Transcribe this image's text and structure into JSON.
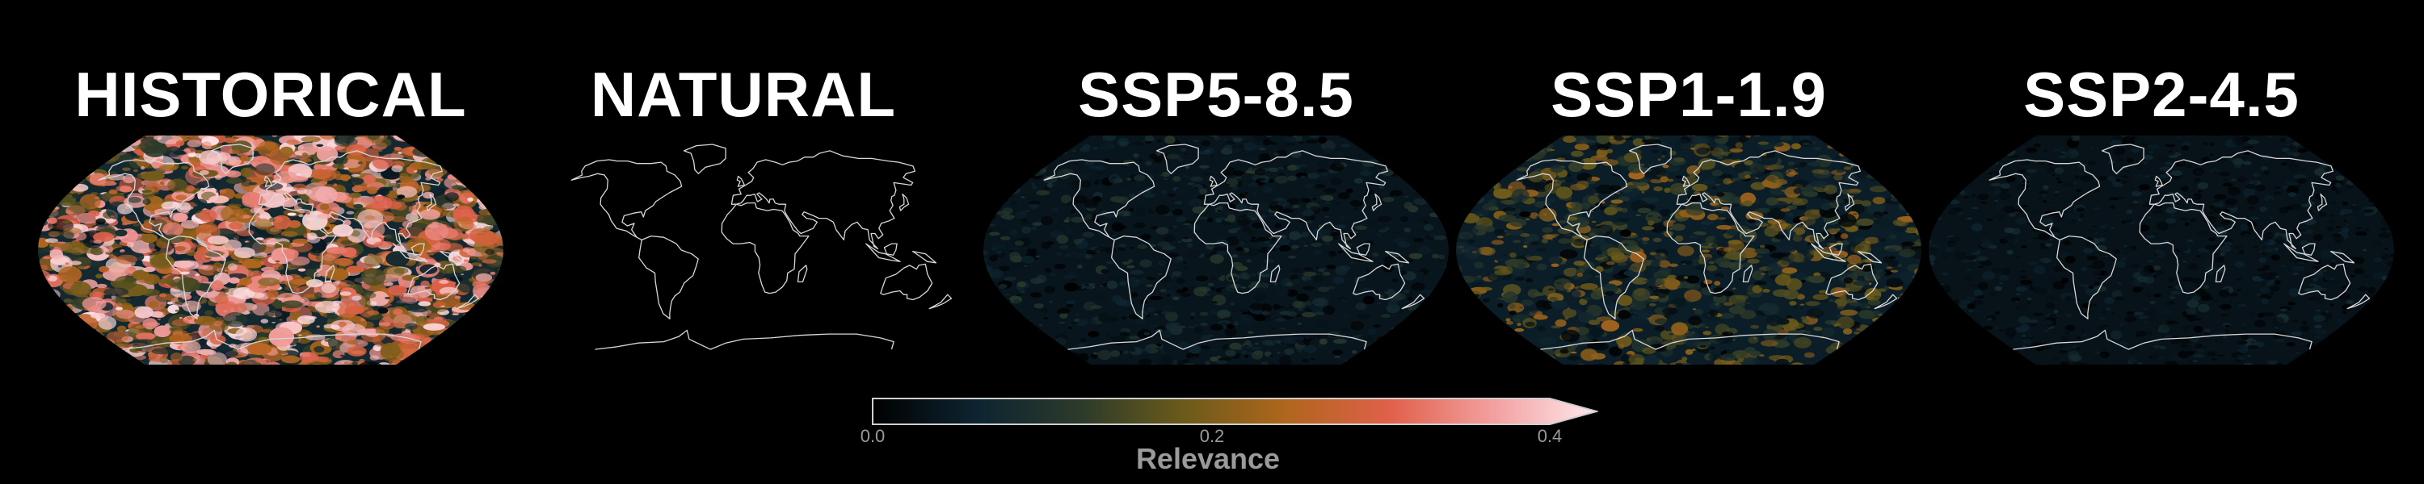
{
  "panels": [
    {
      "title": "HISTORICAL",
      "intensity": 1.0
    },
    {
      "title": "NATURAL",
      "intensity": 0.0
    },
    {
      "title": "SSP5-8.5",
      "intensity": 0.28
    },
    {
      "title": "SSP1-1.9",
      "intensity": 0.55
    },
    {
      "title": "SSP2-4.5",
      "intensity": 0.2
    }
  ],
  "colorbar": {
    "label": "Relevance",
    "ticks": [
      "0.0",
      "0.2",
      "0.4"
    ],
    "min": 0.0,
    "max": 0.4,
    "extend": "max",
    "colors": [
      "#000000",
      "#0d2430",
      "#2b3a2a",
      "#6b5a1a",
      "#b0661c",
      "#e0604a",
      "#f2a0a0",
      "#ffe8ec"
    ]
  },
  "colors": {
    "background": "#000000",
    "coastline": "#d8d8d8",
    "title": "#ffffff",
    "label": "#9a9a9a"
  }
}
